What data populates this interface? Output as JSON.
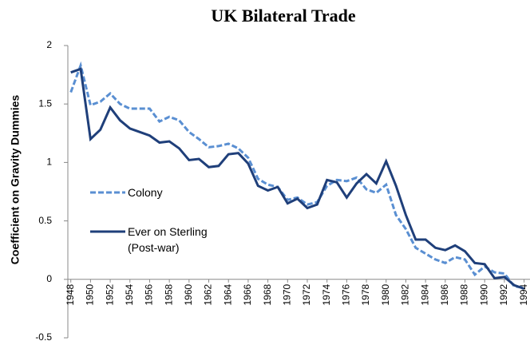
{
  "chart_data": {
    "type": "line",
    "title": "UK Bilateral Trade",
    "y_label": "Coefficient on Gravity Dummies",
    "x": [
      1948,
      1949,
      1950,
      1951,
      1952,
      1953,
      1954,
      1955,
      1956,
      1957,
      1958,
      1959,
      1960,
      1961,
      1962,
      1963,
      1964,
      1965,
      1966,
      1967,
      1968,
      1969,
      1970,
      1971,
      1972,
      1973,
      1974,
      1975,
      1976,
      1977,
      1978,
      1979,
      1980,
      1981,
      1982,
      1983,
      1984,
      1985,
      1986,
      1987,
      1988,
      1989,
      1990,
      1991,
      1992,
      1993,
      1994
    ],
    "xticks": [
      1948,
      1950,
      1952,
      1954,
      1956,
      1958,
      1960,
      1962,
      1964,
      1966,
      1968,
      1970,
      1972,
      1974,
      1976,
      1978,
      1980,
      1982,
      1984,
      1986,
      1988,
      1990,
      1992,
      1994
    ],
    "xlim": [
      1947.7,
      1994.6
    ],
    "ylim": [
      -0.5,
      2
    ],
    "yticks": [
      -0.5,
      0,
      0.5,
      1,
      1.5,
      2
    ],
    "series": [
      {
        "name": "Colony",
        "color": "#5a8fd2",
        "dashed": true,
        "values": [
          1.6,
          1.83,
          1.49,
          1.52,
          1.59,
          1.5,
          1.46,
          1.46,
          1.46,
          1.35,
          1.39,
          1.36,
          1.26,
          1.2,
          1.13,
          1.14,
          1.16,
          1.12,
          1.04,
          0.86,
          0.81,
          0.79,
          0.68,
          0.7,
          0.64,
          0.66,
          0.8,
          0.85,
          0.84,
          0.87,
          0.77,
          0.74,
          0.81,
          0.55,
          0.43,
          0.27,
          0.22,
          0.17,
          0.14,
          0.19,
          0.17,
          0.04,
          0.11,
          0.06,
          0.05,
          -0.06,
          -0.07
        ]
      },
      {
        "name": "Ever on Sterling (Post-war)",
        "color": "#1f3f7a",
        "dashed": false,
        "values": [
          1.77,
          1.8,
          1.2,
          1.28,
          1.47,
          1.36,
          1.29,
          1.26,
          1.23,
          1.17,
          1.18,
          1.12,
          1.02,
          1.03,
          0.96,
          0.97,
          1.07,
          1.08,
          0.99,
          0.8,
          0.76,
          0.79,
          0.65,
          0.69,
          0.61,
          0.64,
          0.85,
          0.83,
          0.7,
          0.82,
          0.9,
          0.82,
          1.01,
          0.8,
          0.55,
          0.34,
          0.34,
          0.27,
          0.25,
          0.29,
          0.24,
          0.14,
          0.13,
          0.01,
          0.02,
          -0.05,
          -0.08
        ]
      }
    ]
  }
}
